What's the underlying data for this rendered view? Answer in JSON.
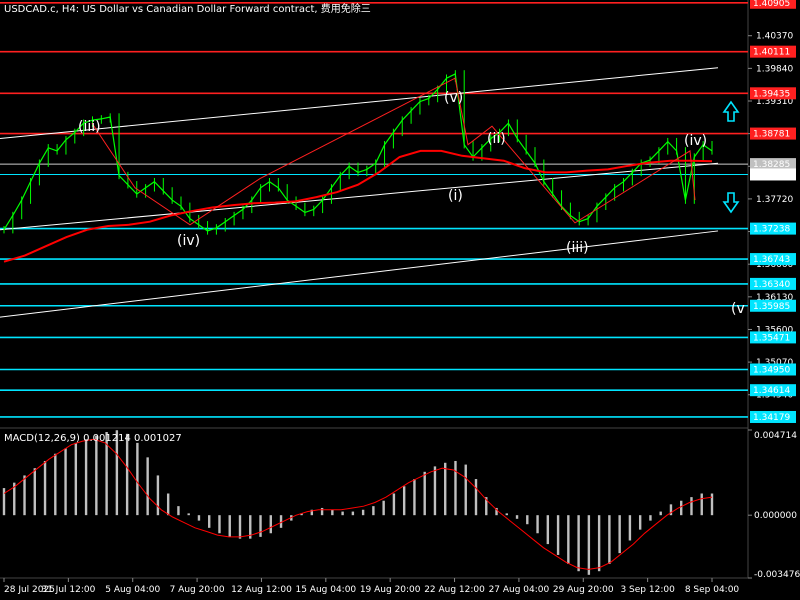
{
  "header": {
    "title": "USDCAD.c, H4:  US Dollar vs Canadian Dollar Forward contract, 费用免除三"
  },
  "colors": {
    "background": "#000000",
    "grid": "#1a1a1a",
    "candle": "#00ff00",
    "price_text": "#ffffff",
    "resistance_line": "#ff2020",
    "support_line": "#00e5ff",
    "ma_line": "#ff0000",
    "wave_line": "#ff2020",
    "trend_line": "#ffffff",
    "macd_hist": "#c0c0c0",
    "macd_signal": "#ff0000",
    "arrow": "#00e5ff"
  },
  "chart_data": [
    {
      "type": "line",
      "title": "USDCAD.c, H4:  US Dollar vs Canadian Dollar Forward contract, 费用免除三",
      "ylim": [
        1.34,
        1.4095
      ],
      "price_axis_ticks": [
        "1.40370",
        "1.39840",
        "1.39310",
        "1.38780",
        "1.38250",
        "1.37720",
        "1.37190",
        "1.36660",
        "1.36130",
        "1.35600",
        "1.35070",
        "1.34540"
      ],
      "x_ticks": [
        "28 Jul 2025",
        "31 Jul 12:00",
        "5 Aug 04:00",
        "7 Aug 20:00",
        "12 Aug 12:00",
        "15 Aug 04:00",
        "19 Aug 20:00",
        "22 Aug 12:00",
        "27 Aug 04:00",
        "29 Aug 20:00",
        "3 Sep 12:00",
        "8 Sep 04:00"
      ],
      "price_series": [
        1.3722,
        1.3745,
        1.377,
        1.38,
        1.383,
        1.3855,
        1.385,
        1.3868,
        1.388,
        1.3895,
        1.39,
        1.3902,
        1.3905,
        1.381,
        1.3795,
        1.378,
        1.379,
        1.38,
        1.3785,
        1.377,
        1.376,
        1.374,
        1.373,
        1.372,
        1.3725,
        1.3735,
        1.3745,
        1.3755,
        1.377,
        1.379,
        1.38,
        1.379,
        1.377,
        1.376,
        1.375,
        1.3755,
        1.377,
        1.379,
        1.381,
        1.3825,
        1.3815,
        1.382,
        1.383,
        1.386,
        1.388,
        1.39,
        1.3915,
        1.393,
        1.3935,
        1.395,
        1.3968,
        1.3975,
        1.386,
        1.384,
        1.3855,
        1.387,
        1.388,
        1.3895,
        1.387,
        1.385,
        1.383,
        1.38,
        1.378,
        1.376,
        1.3745,
        1.3735,
        1.374,
        1.376,
        1.3775,
        1.379,
        1.38,
        1.3815,
        1.383,
        1.3835,
        1.385,
        1.3865,
        1.385,
        1.377,
        1.384,
        1.386,
        1.385
      ],
      "moving_average": [
        1.367,
        1.368,
        1.3695,
        1.371,
        1.3722,
        1.3728,
        1.373,
        1.3735,
        1.3745,
        1.3752,
        1.3758,
        1.3762,
        1.3765,
        1.3766,
        1.3768,
        1.3775,
        1.3783,
        1.3795,
        1.3815,
        1.384,
        1.385,
        1.385,
        1.3842,
        1.3838,
        1.3834,
        1.3822,
        1.3815,
        1.3815,
        1.3818,
        1.382,
        1.3826,
        1.3831,
        1.3834,
        1.3834,
        1.3833
      ],
      "horizontal_levels": {
        "resistance": [
          "1.40905",
          "1.40111",
          "1.39435",
          "1.38781"
        ],
        "current": [
          "1.38285",
          "1.38117"
        ],
        "support": [
          "1.37238",
          "1.36743",
          "1.36340",
          "1.35985",
          "1.35471",
          "1.34950",
          "1.34614",
          "1.34179"
        ]
      },
      "wave_labels": [
        "(iii)",
        "(iv)",
        "(v)",
        "(i)",
        "(ii)",
        "(iii)",
        "(iv)",
        "(v"
      ]
    },
    {
      "type": "bar",
      "title": "MACD(12,26,9) 0.001214 0.001027",
      "ylim": [
        -0.003476,
        0.004714
      ],
      "axis_ticks": [
        "0.004714",
        "0.000000",
        "-0.003476"
      ],
      "histogram": [
        0.0015,
        0.0018,
        0.0022,
        0.0026,
        0.003,
        0.0034,
        0.0037,
        0.004,
        0.0042,
        0.0044,
        0.0046,
        0.0047,
        0.0045,
        0.004,
        0.0032,
        0.0022,
        0.0012,
        0.0005,
        0.0001,
        -0.0003,
        -0.0007,
        -0.001,
        -0.0012,
        -0.0013,
        -0.0013,
        -0.0012,
        -0.001,
        -0.0007,
        -0.0003,
        0.0001,
        0.0003,
        0.0004,
        0.0003,
        0.0002,
        0.0002,
        0.0003,
        0.0005,
        0.0008,
        0.0012,
        0.0016,
        0.002,
        0.0024,
        0.0027,
        0.0029,
        0.003,
        0.0028,
        0.002,
        0.001,
        0.0004,
        0.0001,
        -0.0002,
        -0.0005,
        -0.001,
        -0.0016,
        -0.0022,
        -0.0027,
        -0.0031,
        -0.0033,
        -0.0031,
        -0.0027,
        -0.0021,
        -0.0014,
        -0.0008,
        -0.0003,
        0.0002,
        0.0006,
        0.0008,
        0.001,
        0.0012,
        0.0012
      ],
      "signal": [
        0.0012,
        0.0016,
        0.0021,
        0.0026,
        0.0031,
        0.0035,
        0.0039,
        0.0041,
        0.0042,
        0.004,
        0.0034,
        0.0026,
        0.0017,
        0.0009,
        0.0003,
        -0.0001,
        -0.0004,
        -0.0007,
        -0.0009,
        -0.0011,
        -0.0012,
        -0.0012,
        -0.0011,
        -0.0009,
        -0.0006,
        -0.0003,
        0.0,
        0.0002,
        0.0003,
        0.0003,
        0.0003,
        0.0004,
        0.0005,
        0.0007,
        0.001,
        0.0014,
        0.0018,
        0.0021,
        0.0024,
        0.0026,
        0.0025,
        0.0021,
        0.0015,
        0.0008,
        0.0002,
        -0.0003,
        -0.0008,
        -0.0013,
        -0.0018,
        -0.0022,
        -0.0026,
        -0.0029,
        -0.003,
        -0.0029,
        -0.0026,
        -0.0021,
        -0.0016,
        -0.001,
        -0.0005,
        0.0,
        0.0004,
        0.0007,
        0.0009,
        0.001
      ]
    }
  ]
}
